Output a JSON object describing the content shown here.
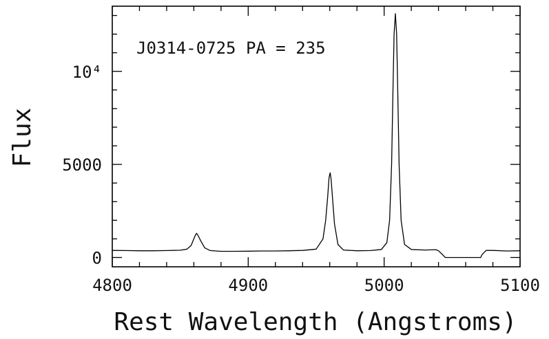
{
  "chart_data": {
    "type": "line",
    "title": "",
    "annotation": "J0314-0725 PA = 235",
    "xlabel": "Rest Wavelength (Angstroms)",
    "ylabel": "Flux",
    "xlim": [
      4800,
      5100
    ],
    "ylim": [
      -500,
      13500
    ],
    "xticks": [
      {
        "value": 4800,
        "label": "4800"
      },
      {
        "value": 4900,
        "label": "4900"
      },
      {
        "value": 5000,
        "label": "5000"
      },
      {
        "value": 5100,
        "label": "5100"
      }
    ],
    "yticks": [
      {
        "value": 0,
        "label": "0"
      },
      {
        "value": 5000,
        "label": "5000"
      },
      {
        "value": 10000,
        "label": "10⁴"
      }
    ],
    "grid": false,
    "legend": "none",
    "series": [
      {
        "color": "#000000",
        "points": [
          [
            4800,
            380
          ],
          [
            4810,
            370
          ],
          [
            4820,
            360
          ],
          [
            4830,
            360
          ],
          [
            4840,
            370
          ],
          [
            4850,
            390
          ],
          [
            4855,
            450
          ],
          [
            4858,
            650
          ],
          [
            4861,
            1180
          ],
          [
            4862,
            1300
          ],
          [
            4863,
            1200
          ],
          [
            4865,
            900
          ],
          [
            4868,
            520
          ],
          [
            4872,
            370
          ],
          [
            4880,
            330
          ],
          [
            4890,
            330
          ],
          [
            4900,
            340
          ],
          [
            4910,
            350
          ],
          [
            4920,
            350
          ],
          [
            4930,
            360
          ],
          [
            4940,
            380
          ],
          [
            4950,
            450
          ],
          [
            4955,
            1000
          ],
          [
            4957,
            2000
          ],
          [
            4958.5,
            3300
          ],
          [
            4959.5,
            4300
          ],
          [
            4960.3,
            4550
          ],
          [
            4961,
            4200
          ],
          [
            4962,
            3200
          ],
          [
            4963.5,
            1800
          ],
          [
            4966,
            700
          ],
          [
            4970,
            400
          ],
          [
            4980,
            360
          ],
          [
            4990,
            370
          ],
          [
            4998,
            430
          ],
          [
            5002,
            800
          ],
          [
            5004,
            2000
          ],
          [
            5005.5,
            5000
          ],
          [
            5006.5,
            9000
          ],
          [
            5007.3,
            12000
          ],
          [
            5008.3,
            13100
          ],
          [
            5009.2,
            12000
          ],
          [
            5010,
            9000
          ],
          [
            5011,
            5000
          ],
          [
            5012.5,
            2000
          ],
          [
            5015,
            700
          ],
          [
            5020,
            430
          ],
          [
            5030,
            400
          ],
          [
            5038,
            420
          ],
          [
            5040,
            360
          ],
          [
            5043,
            150
          ],
          [
            5045,
            0
          ],
          [
            5055,
            0
          ],
          [
            5065,
            0
          ],
          [
            5071,
            0
          ],
          [
            5072,
            150
          ],
          [
            5075,
            380
          ],
          [
            5080,
            380
          ],
          [
            5090,
            350
          ],
          [
            5100,
            360
          ]
        ]
      }
    ]
  }
}
